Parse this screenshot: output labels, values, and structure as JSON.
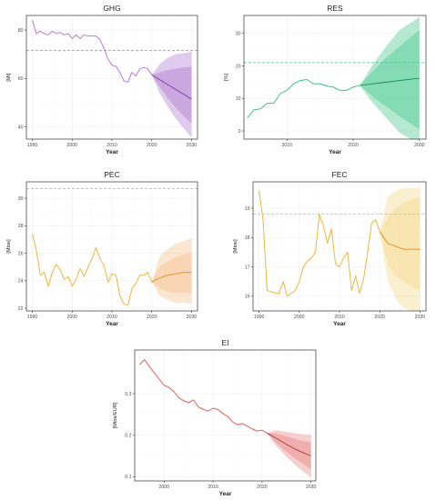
{
  "chart_data": [
    {
      "id": "ghg",
      "type": "line",
      "title": "GHG",
      "xlabel": "Year",
      "ylabel": "[Mt]",
      "xlim": [
        1988.5,
        2031.5
      ],
      "ylim": [
        35,
        86
      ],
      "xticks": [
        1990,
        2000,
        2010,
        2020,
        2030
      ],
      "yticks": [
        40,
        60,
        80
      ],
      "color": "#b77bd6",
      "fill": "#b98bd6",
      "target": 71.5,
      "history": {
        "x": [
          1990,
          1991,
          1992,
          1993,
          1994,
          1995,
          1996,
          1997,
          1998,
          1999,
          2000,
          2001,
          2002,
          2003,
          2004,
          2005,
          2006,
          2007,
          2008,
          2009,
          2010,
          2011,
          2012,
          2013,
          2014,
          2015,
          2016,
          2017,
          2018,
          2019,
          2020
        ],
        "y": [
          84,
          78.5,
          79.5,
          78.5,
          78,
          79.5,
          78.5,
          79,
          78,
          78.5,
          76.5,
          78,
          76.5,
          78,
          77.5,
          77.5,
          77.5,
          76,
          72.5,
          68,
          65.5,
          65,
          62.5,
          59,
          58.5,
          62.5,
          61,
          64,
          64.5,
          64,
          61.5
        ]
      },
      "forecast": {
        "x": [
          2020,
          2022,
          2024,
          2026,
          2028,
          2030
        ],
        "y": [
          61.5,
          59.5,
          57.5,
          55.5,
          53.5,
          51.5
        ],
        "band80": {
          "lo": [
            61.5,
            56.5,
            52,
            48,
            44.5,
            41.5
          ],
          "hi": [
            61.5,
            62.5,
            63.5,
            64,
            64.5,
            65
          ]
        },
        "band95": {
          "lo": [
            61.5,
            54,
            48.5,
            43.5,
            39.5,
            35.5
          ],
          "hi": [
            61.5,
            66,
            68.5,
            70,
            70.5,
            71
          ]
        }
      }
    },
    {
      "id": "res",
      "type": "line",
      "title": "RES",
      "xlabel": "Year",
      "ylabel": "[%]",
      "xlim": [
        2003.5,
        2031
      ],
      "ylim": [
        -2.5,
        35.5
      ],
      "xticks": [
        2010,
        2020,
        2030
      ],
      "yticks": [
        0,
        10,
        20,
        30
      ],
      "color": "#3ec38a",
      "fill": "#5ccf9a",
      "target": 21,
      "history": {
        "x": [
          2004,
          2005,
          2006,
          2007,
          2008,
          2009,
          2010,
          2011,
          2012,
          2013,
          2014,
          2015,
          2016,
          2017,
          2018,
          2019,
          2020,
          2021
        ],
        "y": [
          4,
          6.5,
          6.8,
          8.5,
          8.5,
          11.5,
          12.5,
          14.5,
          15.5,
          15.8,
          14.5,
          14.5,
          13.8,
          13.5,
          12.5,
          12.5,
          13.5,
          14
        ]
      },
      "forecast": {
        "x": [
          2021,
          2023,
          2025,
          2027,
          2030
        ],
        "y": [
          14,
          14.5,
          15,
          15.5,
          16.2
        ],
        "band80": {
          "lo": [
            14,
            10.5,
            7.5,
            4.5,
            0.5
          ],
          "hi": [
            14,
            18.5,
            22.5,
            26,
            31
          ]
        },
        "band95": {
          "lo": [
            14,
            8.5,
            4,
            -0.5,
            -4
          ],
          "hi": [
            14,
            20.5,
            26,
            31,
            35
          ]
        }
      }
    },
    {
      "id": "pec",
      "type": "line",
      "title": "PEC",
      "xlabel": "Year",
      "ylabel": "[Mtoe]",
      "xlim": [
        1988.5,
        2031.5
      ],
      "ylim": [
        21.8,
        31.2
      ],
      "xticks": [
        1990,
        2000,
        2010,
        2020,
        2030
      ],
      "yticks": [
        22,
        24,
        26,
        28,
        30
      ],
      "color": "#f0b63a",
      "fill": "#f7c79a",
      "target": 30.7,
      "history": {
        "x": [
          1990,
          1991,
          1992,
          1993,
          1994,
          1995,
          1996,
          1997,
          1998,
          1999,
          2000,
          2001,
          2002,
          2003,
          2004,
          2005,
          2006,
          2007,
          2008,
          2009,
          2010,
          2011,
          2012,
          2013,
          2014,
          2015,
          2016,
          2017,
          2018,
          2019,
          2020
        ],
        "y": [
          27.4,
          26.2,
          24.4,
          24.6,
          23.6,
          24.6,
          25.2,
          24.8,
          24.1,
          24.3,
          23.6,
          24.1,
          24.9,
          24.3,
          25,
          25.6,
          26.4,
          25.6,
          25.1,
          23.9,
          24.5,
          24.4,
          22.9,
          22.3,
          22.2,
          23.4,
          23.8,
          24.4,
          24.4,
          24.6,
          23.9
        ]
      },
      "forecast": {
        "x": [
          2020,
          2022,
          2024,
          2026,
          2028,
          2030
        ],
        "y": [
          23.9,
          24.2,
          24.4,
          24.5,
          24.6,
          24.6
        ],
        "band80": {
          "lo": [
            23.9,
            23.4,
            23.2,
            23.1,
            23.1,
            23.1
          ],
          "hi": [
            23.9,
            25,
            25.4,
            25.7,
            25.9,
            26.1
          ]
        },
        "band95": {
          "lo": [
            23.9,
            22.9,
            22.6,
            22.4,
            22.4,
            22.3
          ],
          "hi": [
            23.9,
            25.8,
            26.3,
            26.7,
            26.9,
            27.1
          ]
        }
      }
    },
    {
      "id": "fec",
      "type": "line",
      "title": "FEC",
      "xlabel": "Year",
      "ylabel": "[Mtoe]",
      "xlim": [
        1988.5,
        2031.5
      ],
      "ylim": [
        15.5,
        19.9
      ],
      "xticks": [
        1990,
        2000,
        2010,
        2020,
        2030
      ],
      "yticks": [
        16,
        17,
        18,
        19
      ],
      "color": "#f0b63a",
      "fill": "#f5dc95",
      "target": 18.8,
      "history": {
        "x": [
          1990,
          1991,
          1992,
          1993,
          1994,
          1995,
          1996,
          1997,
          1998,
          1999,
          2000,
          2001,
          2002,
          2003,
          2004,
          2005,
          2006,
          2007,
          2008,
          2009,
          2010,
          2011,
          2012,
          2013,
          2014,
          2015,
          2016,
          2017,
          2018,
          2019,
          2020
        ],
        "y": [
          19.6,
          18.6,
          16.2,
          16.15,
          16.1,
          16.1,
          16.5,
          16,
          16.1,
          16.2,
          16.5,
          17,
          17.2,
          17.3,
          17.5,
          18.8,
          18.4,
          17.8,
          18.3,
          17.1,
          17,
          17.3,
          17.5,
          16.2,
          16.7,
          16.1,
          16.6,
          17.5,
          18.5,
          18.6,
          18.2
        ]
      },
      "forecast": {
        "x": [
          2020,
          2022,
          2024,
          2026,
          2028,
          2030
        ],
        "y": [
          18.2,
          17.8,
          17.7,
          17.6,
          17.6,
          17.6
        ],
        "band80": {
          "lo": [
            18.2,
            17.1,
            16.7,
            16.5,
            16.3,
            16.2
          ],
          "hi": [
            18.2,
            18.7,
            19,
            19.2,
            19.3,
            19.4
          ]
        },
        "band95": {
          "lo": [
            18.2,
            16.5,
            15.9,
            15.6,
            15.5,
            15.4
          ],
          "hi": [
            18.2,
            19.4,
            19.6,
            19.7,
            19.7,
            19.7
          ]
        }
      }
    },
    {
      "id": "ei",
      "type": "line",
      "title": "EI",
      "xlabel": "Year",
      "ylabel": "[Mtoe/EUR]",
      "xlim": [
        1994,
        2031
      ],
      "ylim": [
        0.09,
        0.405
      ],
      "xticks": [
        2000,
        2010,
        2020,
        2030
      ],
      "yticks": [
        0.1,
        0.2,
        0.3
      ],
      "color": "#e06060",
      "fill": "#ec9494",
      "target": null,
      "history": {
        "x": [
          1995,
          1996,
          1997,
          1998,
          1999,
          2000,
          2001,
          2002,
          2003,
          2004,
          2005,
          2006,
          2007,
          2008,
          2009,
          2010,
          2011,
          2012,
          2013,
          2014,
          2015,
          2016,
          2017,
          2018,
          2019,
          2020,
          2021
        ],
        "y": [
          0.37,
          0.382,
          0.365,
          0.35,
          0.335,
          0.32,
          0.315,
          0.305,
          0.29,
          0.283,
          0.278,
          0.285,
          0.268,
          0.262,
          0.258,
          0.265,
          0.262,
          0.252,
          0.245,
          0.232,
          0.225,
          0.228,
          0.222,
          0.215,
          0.21,
          0.212,
          0.205
        ]
      },
      "forecast": {
        "x": [
          2021,
          2023,
          2025,
          2027,
          2030
        ],
        "y": [
          0.205,
          0.192,
          0.178,
          0.165,
          0.15
        ],
        "band80": {
          "lo": [
            0.205,
            0.18,
            0.16,
            0.142,
            0.118
          ],
          "hi": [
            0.205,
            0.204,
            0.197,
            0.19,
            0.182
          ]
        },
        "band95": {
          "lo": [
            0.205,
            0.172,
            0.148,
            0.126,
            0.098
          ],
          "hi": [
            0.205,
            0.212,
            0.208,
            0.204,
            0.2
          ]
        }
      }
    }
  ]
}
